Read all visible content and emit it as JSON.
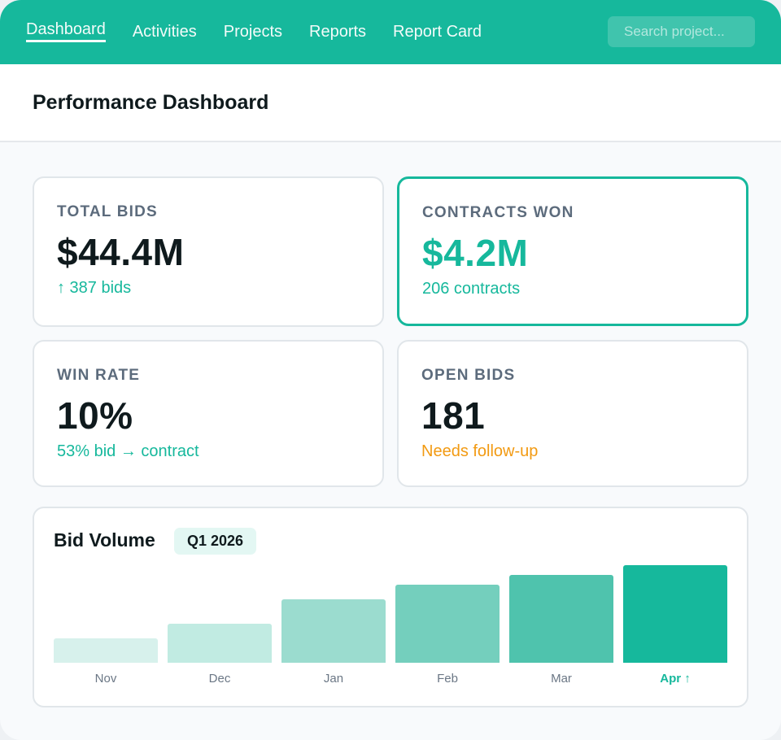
{
  "nav": {
    "tabs": [
      {
        "label": "Dashboard",
        "active": true
      },
      {
        "label": "Activities",
        "active": false
      },
      {
        "label": "Projects",
        "active": false
      },
      {
        "label": "Reports",
        "active": false
      },
      {
        "label": "Report Card",
        "active": false
      }
    ],
    "search": {
      "placeholder": "Search project...",
      "value": ""
    }
  },
  "header": {
    "title": "Performance Dashboard"
  },
  "kpis": {
    "total_bids": {
      "label": "TOTAL BIDS",
      "value": "$44.4M",
      "sub": "↑ 387 bids"
    },
    "contracts_won": {
      "label": "CONTRACTS WON",
      "value": "$4.2M",
      "sub": "206 contracts"
    },
    "win_rate": {
      "label": "WIN RATE",
      "value": "10%",
      "sub": "53% bid → contract"
    },
    "open_bids": {
      "label": "OPEN BIDS",
      "value": "181",
      "sub": "Needs follow-up"
    }
  },
  "colors": {
    "brand": "#16b89c",
    "warning": "#f29a12",
    "text": "#0f1a1d",
    "muted": "#5c6b7c"
  },
  "chart": {
    "title": "Bid Volume",
    "badge": "Q1 2026"
  },
  "chart_data": {
    "type": "bar",
    "categories": [
      "Nov",
      "Dec",
      "Jan",
      "Feb",
      "Mar",
      "Apr ↑"
    ],
    "values": [
      25,
      40,
      65,
      80,
      90,
      100
    ],
    "bar_colors": [
      "#d7f1ec",
      "#c1ebe2",
      "#9bdccf",
      "#74cfbd",
      "#4fc3ad",
      "#16b89c"
    ],
    "highlight_index": 5,
    "ylim": [
      0,
      100
    ],
    "title": "Bid Volume",
    "xlabel": "",
    "ylabel": ""
  }
}
